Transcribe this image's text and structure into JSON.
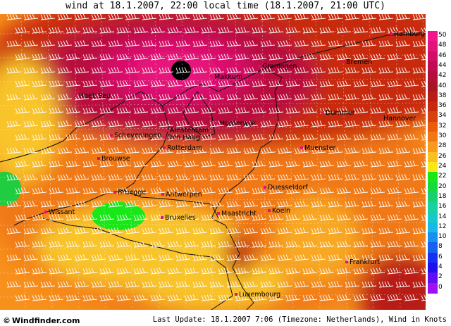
{
  "title": "wind at 18.1.2007, 22:00 local time (18.1.2007, 21:00 UTC)",
  "colors": {
    "s50": "#e8187e",
    "s48": "#d8106a",
    "s46": "#c80e5a",
    "s44": "#b80a3c",
    "s42": "#a8121e",
    "s40": "#b81c14",
    "s38": "#c82c10",
    "s36": "#d8400e",
    "s34": "#e8580c",
    "s32": "#f07814",
    "s30": "#f8901c",
    "s28": "#f8a824",
    "s26": "#f8c42c",
    "s24": "#f8e020",
    "green1": "#18e818",
    "green2": "#20cc40",
    "cyan": "#30d8c8",
    "blue": "#0020f0",
    "violet": "#a010f0"
  },
  "legend": {
    "unit": "Knots",
    "steps": [
      {
        "label": "50",
        "color": "#f0188c"
      },
      {
        "label": "48",
        "color": "#e0147a"
      },
      {
        "label": "46",
        "color": "#d01068"
      },
      {
        "label": "44",
        "color": "#c00c52"
      },
      {
        "label": "42",
        "color": "#b0103a"
      },
      {
        "label": "40",
        "color": "#a81424"
      },
      {
        "label": "38",
        "color": "#b81c14"
      },
      {
        "label": "36",
        "color": "#c82a10"
      },
      {
        "label": "34",
        "color": "#d8400c"
      },
      {
        "label": "32",
        "color": "#e85c0c"
      },
      {
        "label": "30",
        "color": "#f07814"
      },
      {
        "label": "28",
        "color": "#f89a1c"
      },
      {
        "label": "26",
        "color": "#f8c020"
      },
      {
        "label": "24",
        "color": "#f8e818"
      },
      {
        "label": "22",
        "color": "#18e818"
      },
      {
        "label": "20",
        "color": "#18d840"
      },
      {
        "label": "18",
        "color": "#18d070"
      },
      {
        "label": "16",
        "color": "#18d0a0"
      },
      {
        "label": "14",
        "color": "#18c8c8"
      },
      {
        "label": "12",
        "color": "#18b8e8"
      },
      {
        "label": "10",
        "color": "#1890f0"
      },
      {
        "label": "8",
        "color": "#1860f0"
      },
      {
        "label": "6",
        "color": "#1830f0"
      },
      {
        "label": "4",
        "color": "#2010f0"
      },
      {
        "label": "2",
        "color": "#6010f0"
      },
      {
        "label": "0",
        "color": "#a010f0"
      }
    ]
  },
  "cities": [
    {
      "name": "Hamburg",
      "highlight": false
    },
    {
      "name": "Bremen",
      "highlight": false
    },
    {
      "name": "Groningen",
      "highlight": false
    },
    {
      "name": "Makkum",
      "highlight": false
    },
    {
      "name": "Hoek Sea",
      "highlight": false
    },
    {
      "name": "Harderwijk",
      "highlight": false
    },
    {
      "name": "Amsterdam",
      "highlight": false
    },
    {
      "name": "Scheveningen",
      "highlight": false
    },
    {
      "name": "Den Haag",
      "highlight": true
    },
    {
      "name": "Rotterdam",
      "highlight": true
    },
    {
      "name": "Dummer",
      "highlight": true
    },
    {
      "name": "Hannover",
      "highlight": true
    },
    {
      "name": "Muenster",
      "highlight": true
    },
    {
      "name": "Brouwse",
      "highlight": false
    },
    {
      "name": "Duesseldorf",
      "highlight": true
    },
    {
      "name": "Bruegge",
      "highlight": true
    },
    {
      "name": "Antwerpen",
      "highlight": true
    },
    {
      "name": "Wissant",
      "highlight": true
    },
    {
      "name": "Bruxelles",
      "highlight": true
    },
    {
      "name": "Maastricht",
      "highlight": true
    },
    {
      "name": "Koeln",
      "highlight": true
    },
    {
      "name": "Frankfurt",
      "highlight": true
    },
    {
      "name": "Luxembourg",
      "highlight": true
    }
  ],
  "footer": {
    "logo": "Windfinder.com",
    "logo_mark": "©",
    "update": "Last Update: 18.1.2007 7:06 (Timezone: Netherlands), Wind in Knots"
  }
}
